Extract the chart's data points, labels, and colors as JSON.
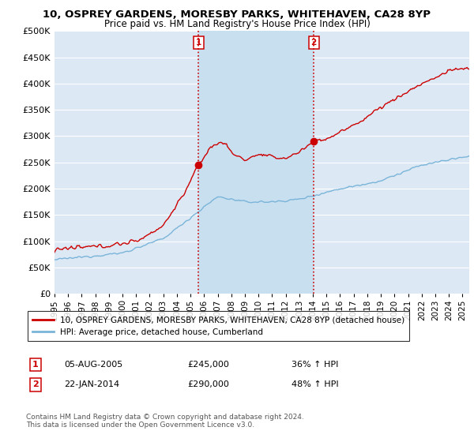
{
  "title_line1": "10, OSPREY GARDENS, MORESBY PARKS, WHITEHAVEN, CA28 8YP",
  "title_line2": "Price paid vs. HM Land Registry's House Price Index (HPI)",
  "ytick_values": [
    0,
    50000,
    100000,
    150000,
    200000,
    250000,
    300000,
    350000,
    400000,
    450000,
    500000
  ],
  "ylim": [
    0,
    500000
  ],
  "xlim_start": 1995.0,
  "xlim_end": 2025.5,
  "x_ticks": [
    1995,
    1996,
    1997,
    1998,
    1999,
    2000,
    2001,
    2002,
    2003,
    2004,
    2005,
    2006,
    2007,
    2008,
    2009,
    2010,
    2011,
    2012,
    2013,
    2014,
    2015,
    2016,
    2017,
    2018,
    2019,
    2020,
    2021,
    2022,
    2023,
    2024,
    2025
  ],
  "hpi_color": "#7ab4d8",
  "sale_color": "#cc0000",
  "vline_color": "#cc0000",
  "shade_color": "#c8dff0",
  "sale1_x": 2005.59,
  "sale1_y": 245000,
  "sale1_label": "1",
  "sale2_x": 2014.06,
  "sale2_y": 290000,
  "sale2_label": "2",
  "legend_sale_label": "10, OSPREY GARDENS, MORESBY PARKS, WHITEHAVEN, CA28 8YP (detached house)",
  "legend_hpi_label": "HPI: Average price, detached house, Cumberland",
  "annotation1_num": "1",
  "annotation1_date": "05-AUG-2005",
  "annotation1_price": "£245,000",
  "annotation1_hpi": "36% ↑ HPI",
  "annotation2_num": "2",
  "annotation2_date": "22-JAN-2014",
  "annotation2_price": "£290,000",
  "annotation2_hpi": "48% ↑ HPI",
  "footer": "Contains HM Land Registry data © Crown copyright and database right 2024.\nThis data is licensed under the Open Government Licence v3.0.",
  "bg_color": "#dce9f5",
  "grid_color": "#ffffff"
}
